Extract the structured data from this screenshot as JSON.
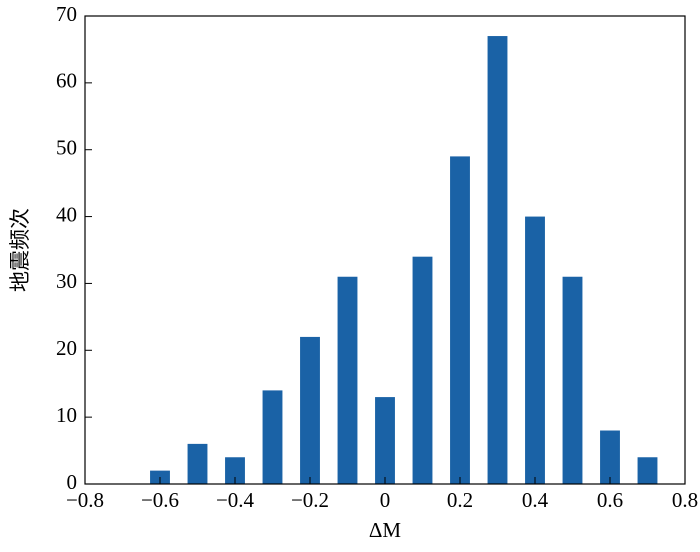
{
  "chart_data": {
    "type": "bar",
    "xlabel": "ΔM",
    "ylabel": "地震频次",
    "x": [
      -0.6,
      -0.5,
      -0.4,
      -0.3,
      -0.2,
      -0.1,
      0,
      0.1,
      0.2,
      0.3,
      0.4,
      0.5,
      0.6,
      0.7
    ],
    "values": [
      2,
      6,
      4,
      14,
      22,
      31,
      13,
      34,
      49,
      67,
      40,
      31,
      8,
      4
    ],
    "color": "#1a62a6",
    "xlim": [
      -0.8,
      0.8
    ],
    "xticks": [
      {
        "value": -0.8,
        "label": "−0.8"
      },
      {
        "value": -0.6,
        "label": "−0.6"
      },
      {
        "value": -0.4,
        "label": "−0.4"
      },
      {
        "value": -0.2,
        "label": "−0.2"
      },
      0,
      0.2,
      0.4,
      0.6,
      0.8
    ],
    "ylim": [
      0,
      70
    ],
    "yticks": [
      0,
      10,
      20,
      30,
      40,
      50,
      60,
      70
    ]
  }
}
